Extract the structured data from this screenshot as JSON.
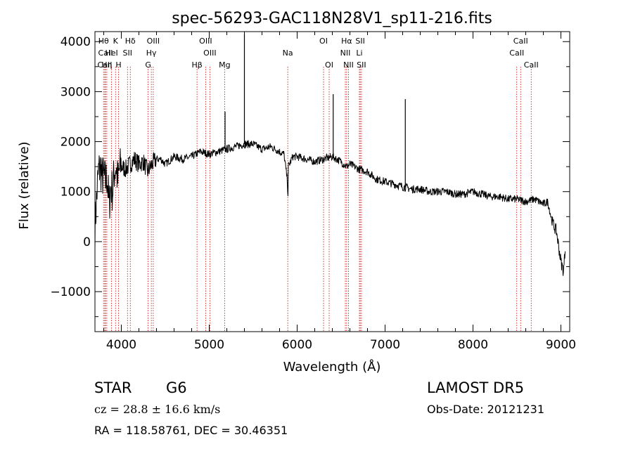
{
  "chart_data": {
    "type": "line",
    "title": "spec-56293-GAC118N28V1_sp11-216.fits",
    "xlabel": "Wavelength (Å)",
    "ylabel": "Flux (relative)",
    "xlim": [
      3700,
      9100
    ],
    "ylim": [
      -1800,
      4200
    ],
    "xticks": [
      4000,
      5000,
      6000,
      7000,
      8000,
      9000
    ],
    "xtick_labels": [
      "4000",
      "5000",
      "6000",
      "7000",
      "8000",
      "9000"
    ],
    "yticks": [
      -1000,
      0,
      1000,
      2000,
      3000,
      4000
    ],
    "ytick_labels": [
      "−1000",
      "0",
      "1000",
      "2000",
      "3000",
      "4000"
    ],
    "grid": false,
    "series_color": "#000000",
    "line_color": "#cc0000",
    "spectrum": {
      "x": [
        3700,
        3720,
        3740,
        3760,
        3780,
        3800,
        3820,
        3840,
        3860,
        3880,
        3900,
        3920,
        3940,
        3960,
        3980,
        4000,
        4050,
        4100,
        4150,
        4200,
        4250,
        4300,
        4350,
        4400,
        4450,
        4500,
        4600,
        4700,
        4800,
        4900,
        5000,
        5100,
        5200,
        5300,
        5400,
        5500,
        5600,
        5700,
        5800,
        5850,
        5890,
        5895,
        5900,
        5950,
        6000,
        6100,
        6200,
        6300,
        6400,
        6500,
        6563,
        6600,
        6700,
        6800,
        6900,
        7000,
        7100,
        7200,
        7300,
        7400,
        7500,
        7600,
        7700,
        7800,
        7900,
        8000,
        8100,
        8200,
        8300,
        8400,
        8500,
        8600,
        8700,
        8750,
        8800,
        8850,
        8900,
        8950,
        9000,
        9030,
        9050
      ],
      "y": [
        300,
        900,
        1400,
        1500,
        1300,
        1300,
        1200,
        1300,
        700,
        1100,
        1000,
        1400,
        1500,
        1200,
        1450,
        1500,
        1450,
        1550,
        1650,
        1550,
        1600,
        1400,
        1550,
        1650,
        1650,
        1550,
        1700,
        1650,
        1700,
        1800,
        1750,
        1800,
        1850,
        1900,
        1950,
        1950,
        1850,
        1900,
        1800,
        1750,
        1200,
        800,
        1500,
        1700,
        1700,
        1650,
        1600,
        1650,
        1700,
        1600,
        1500,
        1550,
        1450,
        1400,
        1250,
        1200,
        1150,
        1100,
        1050,
        1050,
        1000,
        1000,
        1000,
        950,
        950,
        1000,
        950,
        900,
        900,
        850,
        850,
        800,
        850,
        800,
        750,
        800,
        400,
        200,
        -400,
        -600,
        -100
      ],
      "spikes": [
        {
          "x": 5400,
          "y": 4150
        },
        {
          "x": 6410,
          "y": 2950
        },
        {
          "x": 7230,
          "y": 2850
        },
        {
          "x": 5180,
          "y": 2600
        }
      ]
    },
    "lines": [
      {
        "label": "Hθ",
        "x": 3798,
        "row": 1
      },
      {
        "label": "CaII",
        "x": 3820,
        "row": 2
      },
      {
        "label": "CaII",
        "x": 3812,
        "row": 3
      },
      {
        "label": "Hη",
        "x": 3835,
        "row": 3
      },
      {
        "label": "K",
        "x": 3934,
        "row": 1
      },
      {
        "label": "HeI",
        "x": 3889,
        "row": 2
      },
      {
        "label": "H",
        "x": 3968,
        "row": 3
      },
      {
        "label": "Hδ",
        "x": 4102,
        "row": 1
      },
      {
        "label": "SII",
        "x": 4070,
        "row": 2
      },
      {
        "label": "OIII",
        "x": 4363,
        "row": 1
      },
      {
        "label": "Hγ",
        "x": 4341,
        "row": 2
      },
      {
        "label": "G",
        "x": 4305,
        "row": 3
      },
      {
        "label": "OIII",
        "x": 4959,
        "row": 1
      },
      {
        "label": "OIII",
        "x": 5007,
        "row": 2
      },
      {
        "label": "Hβ",
        "x": 4861,
        "row": 3
      },
      {
        "label": "Mg",
        "x": 5175,
        "row": 3
      },
      {
        "label": "Na",
        "x": 5893,
        "row": 2
      },
      {
        "label": "OI",
        "x": 6300,
        "row": 1
      },
      {
        "label": "OI",
        "x": 6364,
        "row": 3
      },
      {
        "label": "Hα",
        "x": 6563,
        "row": 1
      },
      {
        "label": "NII",
        "x": 6548,
        "row": 2
      },
      {
        "label": "NII",
        "x": 6584,
        "row": 3
      },
      {
        "label": "SII",
        "x": 6717,
        "row": 1
      },
      {
        "label": "Li",
        "x": 6708,
        "row": 2
      },
      {
        "label": "SII",
        "x": 6731,
        "row": 3
      },
      {
        "label": "CaII",
        "x": 8542,
        "row": 1
      },
      {
        "label": "CaII",
        "x": 8498,
        "row": 2
      },
      {
        "label": "CaII",
        "x": 8662,
        "row": 3
      }
    ]
  },
  "info": {
    "class_label": "STAR",
    "subclass": "G6",
    "cz": "cz = 28.8 ± 16.6 km/s",
    "radec": "RA = 118.58761, DEC =  30.46351",
    "survey": "LAMOST DR5",
    "obs_date": "Obs-Date: 20121231"
  }
}
